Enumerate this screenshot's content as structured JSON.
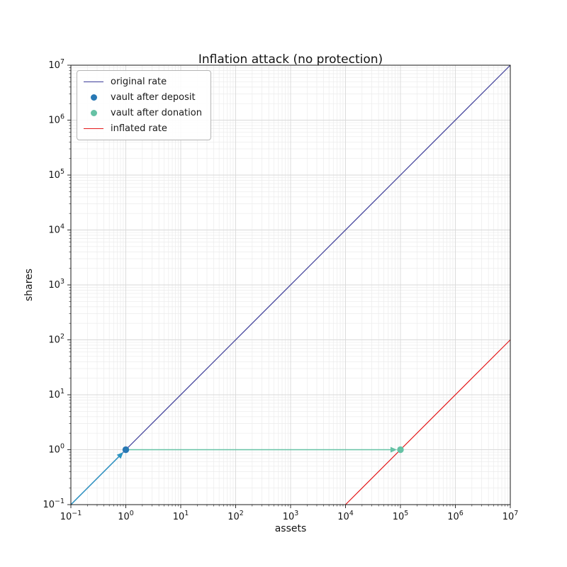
{
  "chart_data": {
    "type": "line",
    "title": "Inflation attack (no protection)",
    "xlabel": "assets",
    "ylabel": "shares",
    "xscale": "log",
    "yscale": "log",
    "xlim": [
      0.1,
      10000000
    ],
    "ylim": [
      0.1,
      10000000
    ],
    "x_tick_exponents": [
      -1,
      0,
      1,
      2,
      3,
      4,
      5,
      6,
      7
    ],
    "y_tick_exponents": [
      -1,
      0,
      1,
      2,
      3,
      4,
      5,
      6,
      7
    ],
    "grid": {
      "which": "both",
      "major_color": "#d9d9d9",
      "minor_color": "#ebebeb"
    },
    "legend_position": "upper-left",
    "series": [
      {
        "name": "original rate",
        "kind": "line",
        "color": "#3d3d99",
        "points": [
          [
            0.1,
            0.1
          ],
          [
            10000000,
            10000000
          ]
        ]
      },
      {
        "name": "vault after deposit",
        "kind": "scatter",
        "color": "#2878b4",
        "points": [
          [
            1,
            1
          ]
        ]
      },
      {
        "name": "vault after donation",
        "kind": "scatter",
        "color": "#66c2a5",
        "points": [
          [
            100000,
            1
          ]
        ]
      },
      {
        "name": "inflated rate",
        "kind": "line",
        "color": "#e41a1c",
        "points": [
          [
            10000,
            0.1
          ],
          [
            10000000,
            100
          ]
        ]
      }
    ],
    "annotations": [
      {
        "type": "arrow",
        "color": "#2a93c1",
        "from": [
          0.1,
          0.1
        ],
        "to": [
          1,
          1
        ]
      },
      {
        "type": "arrow",
        "color": "#66c2a5",
        "from": [
          1,
          1
        ],
        "to": [
          100000,
          1
        ]
      }
    ]
  }
}
